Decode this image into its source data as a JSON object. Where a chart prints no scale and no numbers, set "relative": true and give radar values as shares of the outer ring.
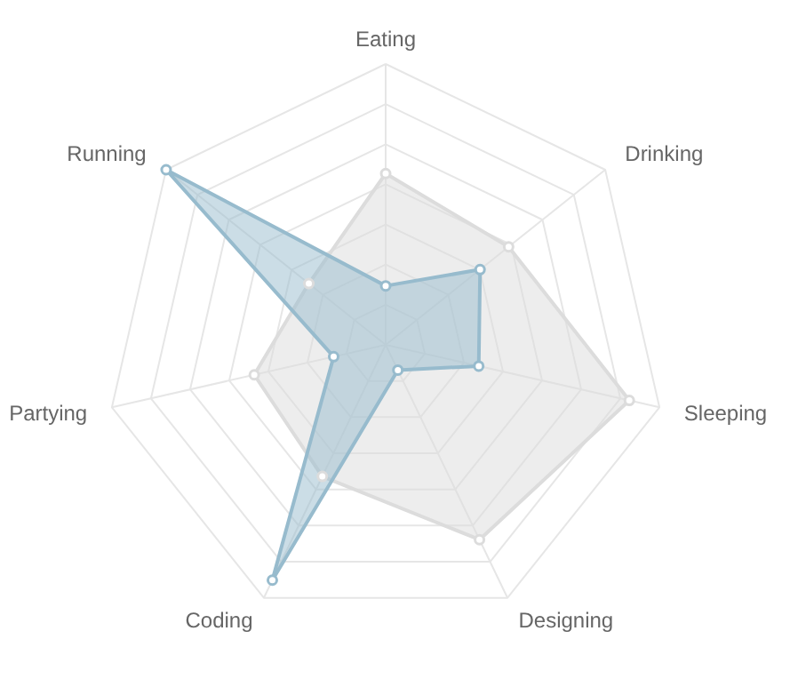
{
  "chart_data": {
    "type": "radar",
    "relative": true,
    "grid": true,
    "marker": "circle",
    "categories": [
      "Eating",
      "Drinking",
      "Sleeping",
      "Designing",
      "Coding",
      "Partying",
      "Running"
    ],
    "series": [
      {
        "color": "#dcdcdc",
        "values": [
          0.61,
          0.56,
          0.89,
          0.77,
          0.52,
          0.48,
          0.35
        ]
      },
      {
        "color": "#97bbcd",
        "values": [
          0.21,
          0.43,
          0.34,
          0.1,
          0.93,
          0.19,
          1.0
        ]
      }
    ]
  }
}
